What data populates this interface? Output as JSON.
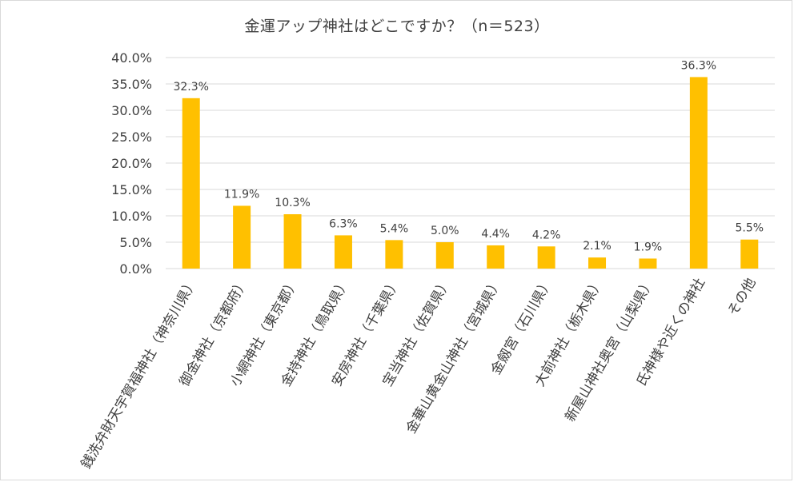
{
  "chart_data": {
    "type": "bar",
    "title": "金運アップ神社はどこですか？（n＝523）",
    "xlabel": "",
    "ylabel": "",
    "ylim": [
      0,
      40
    ],
    "yticks": [
      "0.0%",
      "5.0%",
      "10.0%",
      "15.0%",
      "20.0%",
      "25.0%",
      "30.0%",
      "35.0%",
      "40.0%"
    ],
    "grid": true,
    "legend": "none",
    "categories": [
      "銭洗弁財天宇賀福神社（神奈川県）",
      "御金神社（京都府）",
      "小網神社（東京都）",
      "金持神社（鳥取県）",
      "安房神社（千葉県）",
      "宝当神社（佐賀県）",
      "金華山黄金山神社（宮城県）",
      "金劔宮（石川県）",
      "大前神社（栃木県）",
      "新屋山神社奥宮（山梨県）",
      "氏神様や近くの神社",
      "その他"
    ],
    "values": [
      32.3,
      11.9,
      10.3,
      6.3,
      5.4,
      5.0,
      4.4,
      4.2,
      2.1,
      1.9,
      36.3,
      5.5
    ],
    "data_labels": [
      "32.3%",
      "11.9%",
      "10.3%",
      "6.3%",
      "5.4%",
      "5.0%",
      "4.4%",
      "4.2%",
      "2.1%",
      "1.9%",
      "36.3%",
      "5.5%"
    ],
    "bar_color": "#FFC000",
    "grid_color": "#D9D9D9",
    "text_color": "#404040"
  }
}
